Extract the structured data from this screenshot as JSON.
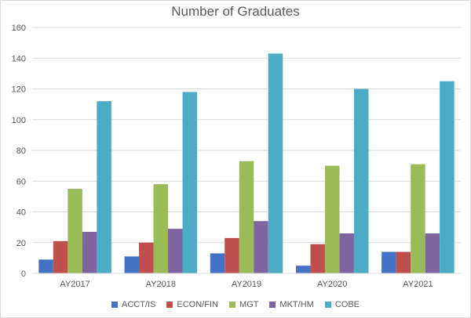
{
  "chart_data": {
    "type": "bar",
    "title": "Number of Graduates",
    "xlabel": "",
    "ylabel": "",
    "categories": [
      "AY2017",
      "AY2018",
      "AY2019",
      "AY2020",
      "AY2021"
    ],
    "ylim": [
      0,
      160
    ],
    "yticks": [
      0,
      20,
      40,
      60,
      80,
      100,
      120,
      140,
      160
    ],
    "grid": true,
    "legend_position": "bottom",
    "series": [
      {
        "name": "ACCT/IS",
        "color": "#4472c4",
        "values": [
          9,
          11,
          13,
          5,
          14
        ]
      },
      {
        "name": "ECON/FIN",
        "color": "#c0504d",
        "values": [
          21,
          20,
          23,
          19,
          14
        ]
      },
      {
        "name": "MGT",
        "color": "#9bbb59",
        "values": [
          55,
          58,
          73,
          70,
          71
        ]
      },
      {
        "name": "MKT/HM",
        "color": "#8064a2",
        "values": [
          27,
          29,
          34,
          26,
          26
        ]
      },
      {
        "name": "COBE",
        "color": "#4bacc6",
        "values": [
          112,
          118,
          143,
          120,
          125
        ]
      }
    ]
  }
}
